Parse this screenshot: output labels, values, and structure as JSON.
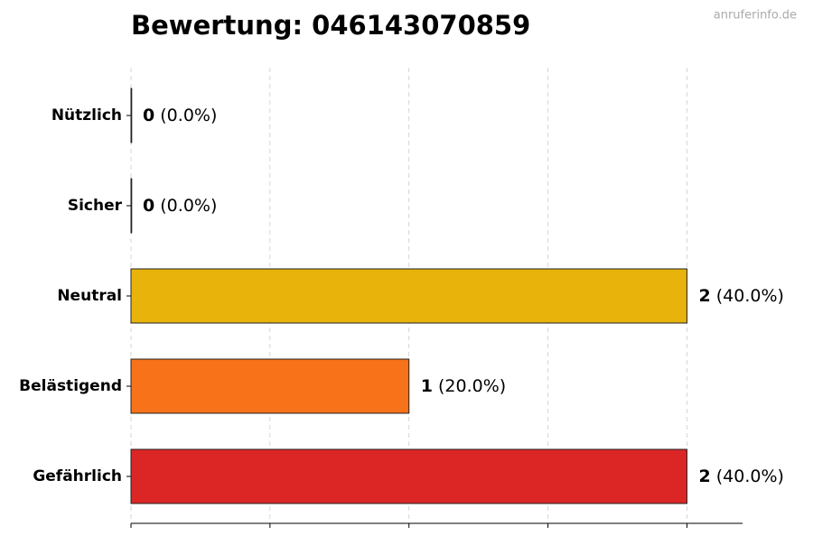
{
  "chart_data": {
    "type": "barh",
    "title": "Bewertung: 046143070859",
    "watermark": "anruferinfo.de",
    "categories": [
      "Nützlich",
      "Sicher",
      "Neutral",
      "Belästigend",
      "Gefährlich"
    ],
    "values": [
      0,
      0,
      2,
      1,
      2
    ],
    "shares": [
      "(0.0%)",
      "(0.0%)",
      "(40.0%)",
      "(20.0%)",
      "(40.0%)"
    ],
    "colors": [
      "#2e9e4a",
      "#3b82c4",
      "#e8b30a",
      "#f77219",
      "#dc2626"
    ],
    "xlim": [
      0,
      2.2
    ],
    "xticks": [
      0,
      0.5,
      1,
      1.5,
      2
    ],
    "grid": true
  }
}
